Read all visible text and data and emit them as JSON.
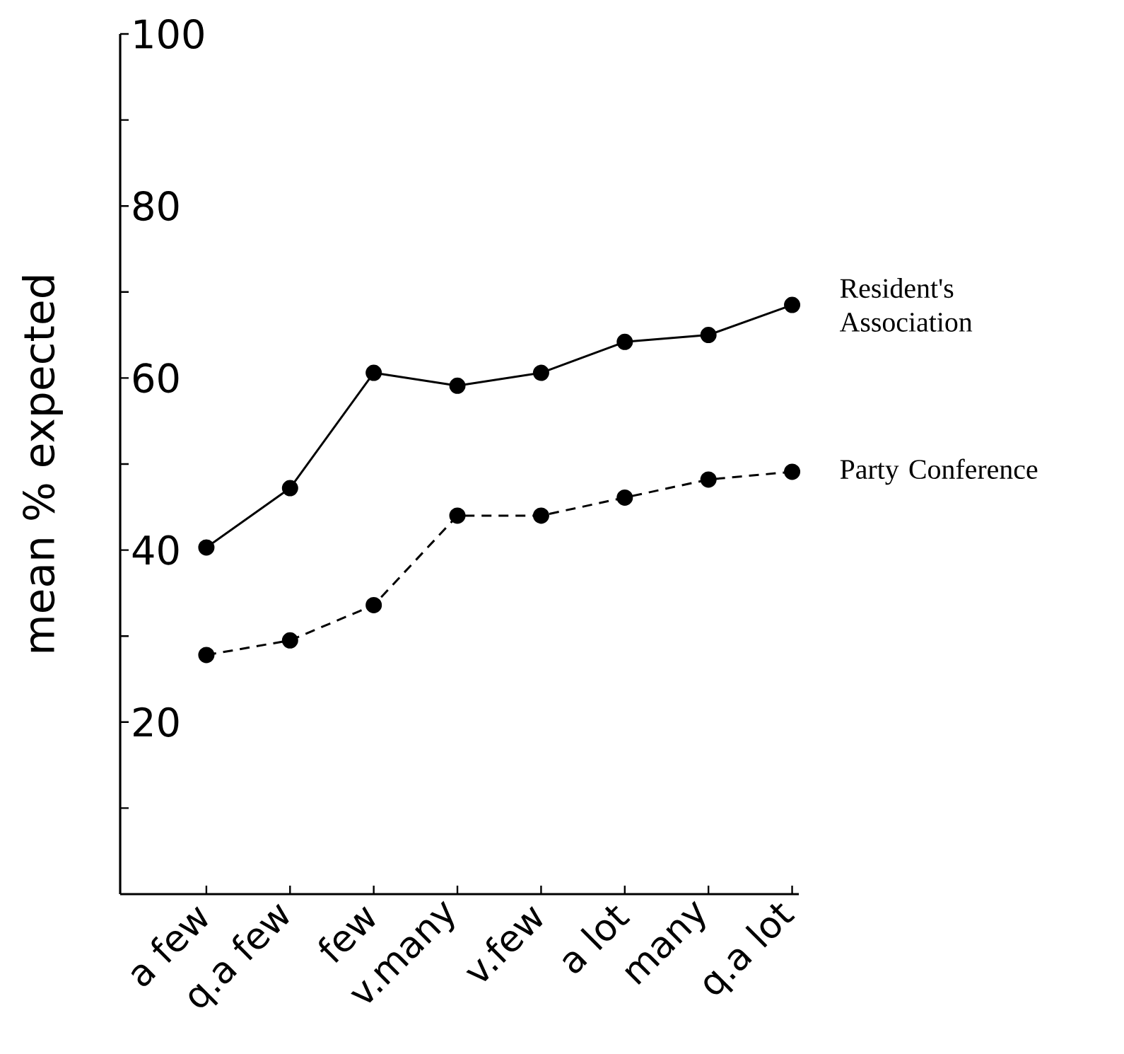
{
  "chart_data": {
    "type": "line",
    "ylabel": "mean % expected",
    "categories": [
      "a few",
      "q.a few",
      "few",
      "v.many",
      "v.few",
      "a lot",
      "many",
      "q.a lot"
    ],
    "series": [
      {
        "name": "Resident's Association",
        "color": "#000000",
        "line_style": "solid",
        "values": [
          40.3,
          47.2,
          60.6,
          59.1,
          60.6,
          64.2,
          65.0,
          68.5
        ]
      },
      {
        "name": "Party Conference",
        "color": "#000000",
        "line_style": "dashed",
        "values": [
          27.8,
          29.5,
          33.6,
          44.0,
          44.0,
          46.1,
          48.2,
          49.1
        ]
      }
    ],
    "ylim": [
      0,
      100
    ],
    "yticks": [
      {
        "value": 10,
        "label": null
      },
      20,
      {
        "value": 30,
        "label": null
      },
      40,
      {
        "value": 50,
        "label": null
      },
      60,
      {
        "value": 70,
        "label": null
      },
      80,
      {
        "value": 90,
        "label": null
      },
      100
    ],
    "marker": "circle",
    "grid": false,
    "legend": false
  }
}
